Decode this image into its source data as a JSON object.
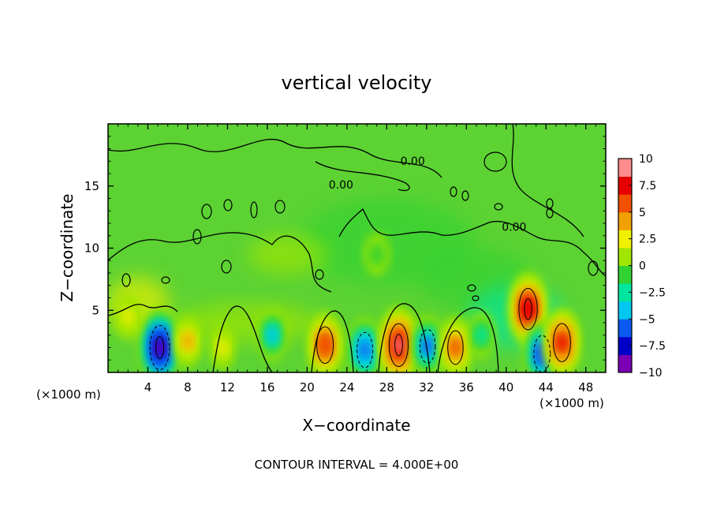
{
  "chart_data": {
    "type": "heatmap",
    "title": "vertical velocity",
    "xlabel": "X−coordinate",
    "ylabel": "Z−coordinate",
    "x_unit_left": "(×1000 m)",
    "x_unit_right": "(×1000 m)",
    "footer": "CONTOUR INTERVAL = 4.000E+00",
    "xlim": [
      0,
      50
    ],
    "ylim": [
      0,
      20
    ],
    "x_ticks": [
      4,
      8,
      12,
      16,
      20,
      24,
      28,
      32,
      36,
      40,
      44,
      48
    ],
    "y_ticks": [
      5,
      10,
      15
    ],
    "x_tick_labels": [
      "4",
      "8",
      "12",
      "16",
      "20",
      "24",
      "28",
      "32",
      "36",
      "40",
      "44",
      "48"
    ],
    "y_tick_labels": [
      "5",
      "10",
      "15"
    ],
    "colorbar": {
      "range": [
        -10,
        10
      ],
      "ticks": [
        10,
        7.5,
        5,
        2.5,
        0,
        -2.5,
        -5,
        -7.5,
        -10
      ],
      "labels": [
        "10",
        "7.5",
        "5",
        "2.5",
        "0",
        "−2.5",
        "−5",
        "−7.5",
        "−10"
      ],
      "colors": [
        "#7b00b4",
        "#0000c8",
        "#0a5af0",
        "#00c8f0",
        "#00e6a0",
        "#32d232",
        "#a0e600",
        "#f0f000",
        "#f0a000",
        "#f05000",
        "#e60000",
        "#ff8c8c"
      ]
    },
    "background_value": 0.5,
    "contour_labels": [
      {
        "text": "0.00",
        "x": 30.6,
        "z": 16.7
      },
      {
        "text": "0.00",
        "x": 23.4,
        "z": 14.8
      },
      {
        "text": "0.00",
        "x": 40.8,
        "z": 11.4
      }
    ],
    "cells": [
      {
        "x": 5.2,
        "z": 2.0,
        "value": -9.0,
        "sign": "negative"
      },
      {
        "x": 8.0,
        "z": 2.5,
        "value": 3.5,
        "sign": "positive"
      },
      {
        "x": 11.5,
        "z": 2.0,
        "value": 2.0,
        "sign": "positive"
      },
      {
        "x": 16.5,
        "z": 3.0,
        "value": -3.5,
        "sign": "negative"
      },
      {
        "x": 21.8,
        "z": 2.2,
        "value": 6.5,
        "sign": "positive"
      },
      {
        "x": 25.8,
        "z": 1.8,
        "value": -6.0,
        "sign": "negative"
      },
      {
        "x": 29.2,
        "z": 2.2,
        "value": 8.5,
        "sign": "positive"
      },
      {
        "x": 32.1,
        "z": 2.1,
        "value": -5.5,
        "sign": "negative"
      },
      {
        "x": 34.9,
        "z": 2.0,
        "value": 5.5,
        "sign": "positive"
      },
      {
        "x": 37.5,
        "z": 3.0,
        "value": -2.5,
        "sign": "negative"
      },
      {
        "x": 42.2,
        "z": 5.1,
        "value": 8.0,
        "sign": "positive"
      },
      {
        "x": 43.6,
        "z": 1.5,
        "value": -6.5,
        "sign": "negative"
      },
      {
        "x": 45.6,
        "z": 2.4,
        "value": 7.0,
        "sign": "positive"
      },
      {
        "x": 2.0,
        "z": 4.5,
        "value": 2.0,
        "sign": "positive"
      },
      {
        "x": 27.0,
        "z": 9.5,
        "value": -1.5,
        "sign": "negative"
      }
    ]
  }
}
